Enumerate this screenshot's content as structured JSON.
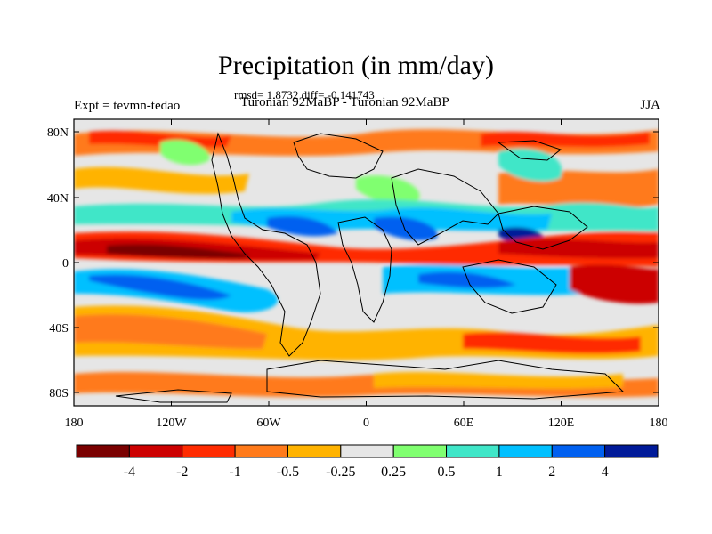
{
  "title": "Precipitation (in mm/day)",
  "stats": "rmsd= 1.8732 diff= -0.141743",
  "expt_label": "Expt = tevmn-tedao",
  "subtitle": "Turonian  92MaBP - Turonian  92MaBP",
  "season": "JJA",
  "lat_ticks": [
    "80N",
    "40N",
    "0",
    "40S",
    "80S"
  ],
  "lon_ticks": [
    "180",
    "120W",
    "60W",
    "0",
    "60E",
    "120E",
    "180"
  ],
  "colorbar": {
    "colors": [
      "#7a0000",
      "#cc0000",
      "#ff2b00",
      "#ff7a1a",
      "#ffb300",
      "#e6e6e6",
      "#80ff70",
      "#40e6c8",
      "#00c0ff",
      "#0060f0",
      "#001a99"
    ],
    "labels": [
      "-4",
      "-2",
      "-1",
      "-0.5",
      "-0.25",
      "0.25",
      "0.5",
      "1",
      "2",
      "4"
    ]
  }
}
